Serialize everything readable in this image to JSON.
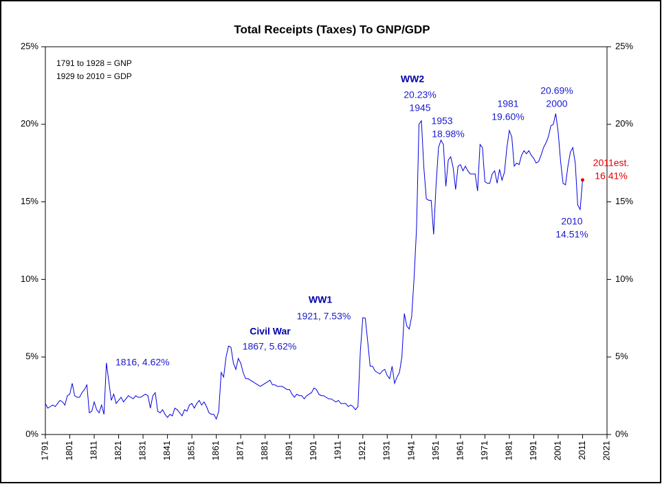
{
  "chart_data": {
    "type": "line",
    "title": "Total Receipts (Taxes) To GNP/GDP",
    "x": [
      1791,
      1792,
      1793,
      1794,
      1795,
      1796,
      1797,
      1798,
      1799,
      1800,
      1801,
      1802,
      1803,
      1804,
      1805,
      1806,
      1807,
      1808,
      1809,
      1810,
      1811,
      1812,
      1813,
      1814,
      1815,
      1816,
      1817,
      1818,
      1819,
      1820,
      1821,
      1822,
      1823,
      1824,
      1825,
      1826,
      1827,
      1828,
      1829,
      1830,
      1831,
      1832,
      1833,
      1834,
      1835,
      1836,
      1837,
      1838,
      1839,
      1840,
      1841,
      1842,
      1843,
      1844,
      1845,
      1846,
      1847,
      1848,
      1849,
      1850,
      1851,
      1852,
      1853,
      1854,
      1855,
      1856,
      1857,
      1858,
      1859,
      1860,
      1861,
      1862,
      1863,
      1864,
      1865,
      1866,
      1867,
      1868,
      1869,
      1870,
      1871,
      1872,
      1873,
      1874,
      1875,
      1876,
      1877,
      1878,
      1879,
      1880,
      1881,
      1882,
      1883,
      1884,
      1885,
      1886,
      1887,
      1888,
      1889,
      1890,
      1891,
      1892,
      1893,
      1894,
      1895,
      1896,
      1897,
      1898,
      1899,
      1900,
      1901,
      1902,
      1903,
      1904,
      1905,
      1906,
      1907,
      1908,
      1909,
      1910,
      1911,
      1912,
      1913,
      1914,
      1915,
      1916,
      1917,
      1918,
      1919,
      1920,
      1921,
      1922,
      1923,
      1924,
      1925,
      1926,
      1927,
      1928,
      1929,
      1930,
      1931,
      1932,
      1933,
      1934,
      1935,
      1936,
      1937,
      1938,
      1939,
      1940,
      1941,
      1942,
      1943,
      1944,
      1945,
      1946,
      1947,
      1948,
      1949,
      1950,
      1951,
      1952,
      1953,
      1954,
      1955,
      1956,
      1957,
      1958,
      1959,
      1960,
      1961,
      1962,
      1963,
      1964,
      1965,
      1966,
      1967,
      1968,
      1969,
      1970,
      1971,
      1972,
      1973,
      1974,
      1975,
      1976,
      1977,
      1978,
      1979,
      1980,
      1981,
      1982,
      1983,
      1984,
      1985,
      1986,
      1987,
      1988,
      1989,
      1990,
      1991,
      1992,
      1993,
      1994,
      1995,
      1996,
      1997,
      1998,
      1999,
      2000,
      2001,
      2002,
      2003,
      2004,
      2005,
      2006,
      2007,
      2008,
      2009,
      2010,
      2011
    ],
    "series": [
      {
        "color": "#0000dd",
        "estimate_color": "#e00000",
        "values": [
          2.0,
          1.7,
          1.8,
          1.9,
          1.8,
          2.0,
          2.2,
          2.1,
          1.9,
          2.5,
          2.6,
          3.3,
          2.5,
          2.4,
          2.4,
          2.7,
          2.9,
          3.2,
          1.4,
          1.5,
          2.1,
          1.6,
          1.4,
          1.9,
          1.3,
          4.62,
          3.4,
          2.2,
          2.6,
          2.0,
          2.2,
          2.4,
          2.1,
          2.3,
          2.5,
          2.4,
          2.3,
          2.5,
          2.4,
          2.4,
          2.5,
          2.6,
          2.5,
          1.7,
          2.5,
          2.7,
          1.5,
          1.4,
          1.6,
          1.3,
          1.1,
          1.3,
          1.2,
          1.7,
          1.6,
          1.4,
          1.2,
          1.6,
          1.5,
          1.9,
          2.0,
          1.7,
          2.0,
          2.2,
          1.9,
          2.1,
          1.8,
          1.4,
          1.3,
          1.3,
          1.0,
          1.5,
          4.0,
          3.7,
          5.0,
          5.7,
          5.62,
          4.6,
          4.2,
          4.9,
          4.6,
          4.0,
          3.6,
          3.6,
          3.5,
          3.4,
          3.3,
          3.2,
          3.1,
          3.2,
          3.3,
          3.4,
          3.5,
          3.2,
          3.2,
          3.1,
          3.1,
          3.1,
          3.0,
          2.9,
          2.9,
          2.6,
          2.4,
          2.6,
          2.5,
          2.5,
          2.3,
          2.5,
          2.6,
          2.7,
          3.0,
          2.9,
          2.6,
          2.5,
          2.5,
          2.4,
          2.3,
          2.3,
          2.2,
          2.1,
          2.2,
          2.0,
          2.0,
          2.0,
          1.8,
          1.9,
          1.8,
          1.6,
          1.8,
          5.4,
          7.53,
          7.5,
          6.0,
          4.4,
          4.4,
          4.1,
          4.0,
          3.9,
          4.1,
          4.2,
          3.8,
          3.6,
          4.4,
          3.3,
          3.7,
          4.0,
          5.0,
          7.8,
          7.0,
          6.8,
          7.6,
          10.1,
          13.3,
          20.0,
          20.23,
          17.2,
          15.2,
          15.1,
          15.1,
          12.9,
          16.1,
          18.5,
          18.98,
          18.7,
          16.0,
          17.7,
          17.9,
          17.2,
          15.8,
          17.3,
          17.4,
          17.0,
          17.3,
          17.0,
          16.8,
          16.8,
          16.8,
          15.7,
          18.7,
          18.5,
          16.3,
          16.2,
          16.2,
          16.8,
          17.0,
          16.2,
          17.1,
          16.4,
          16.9,
          18.5,
          19.6,
          19.2,
          17.3,
          17.5,
          17.4,
          18.0,
          18.3,
          18.1,
          18.3,
          18.0,
          17.8,
          17.5,
          17.6,
          18.0,
          18.5,
          18.8,
          19.2,
          19.9,
          20.0,
          20.69,
          19.5,
          17.6,
          16.2,
          16.1,
          17.3,
          18.2,
          18.5,
          17.5,
          14.8,
          14.51,
          16.41
        ]
      }
    ],
    "xlim": [
      1791,
      2021
    ],
    "xticks": [
      1791,
      1801,
      1811,
      1821,
      1831,
      1841,
      1851,
      1861,
      1871,
      1881,
      1891,
      1901,
      1911,
      1921,
      1931,
      1941,
      1951,
      1961,
      1971,
      1981,
      1991,
      2001,
      2011,
      2021
    ],
    "ylim": [
      0,
      25
    ],
    "yticks": [
      {
        "value": 0,
        "label": "0%"
      },
      {
        "value": 5,
        "label": "5%"
      },
      {
        "value": 10,
        "label": "10%"
      },
      {
        "value": 15,
        "label": "15%"
      },
      {
        "value": 20,
        "label": "20%"
      },
      {
        "value": 25,
        "label": "25%"
      }
    ],
    "annotations": [
      {
        "text": "1791 to 1928 = GNP",
        "color": "#000000"
      },
      {
        "text": "1929 to 2010 = GDP",
        "color": "#000000"
      },
      {
        "text": "1816, 4.62%",
        "color": "#1a1acc"
      },
      {
        "text": "Civil War",
        "color": "#0000aa",
        "bold": true
      },
      {
        "text": "1867, 5.62%",
        "color": "#1a1acc"
      },
      {
        "text": "WW1",
        "color": "#0000aa",
        "bold": true
      },
      {
        "text": "1921, 7.53%",
        "color": "#1a1acc"
      },
      {
        "text": "WW2",
        "color": "#0000aa",
        "bold": true
      },
      {
        "text": "20.23%",
        "color": "#1a1acc"
      },
      {
        "text": "1945",
        "color": "#1a1acc"
      },
      {
        "text": "1953",
        "color": "#1a1acc"
      },
      {
        "text": "18.98%",
        "color": "#1a1acc"
      },
      {
        "text": "1981",
        "color": "#1a1acc"
      },
      {
        "text": "19.60%",
        "color": "#1a1acc"
      },
      {
        "text": "20.69%",
        "color": "#1a1acc"
      },
      {
        "text": "2000",
        "color": "#1a1acc"
      },
      {
        "text": "2011est.",
        "color": "#e00000"
      },
      {
        "text": "16.41%",
        "color": "#e00000"
      },
      {
        "text": "2010",
        "color": "#1a1acc"
      },
      {
        "text": "14.51%",
        "color": "#1a1acc"
      }
    ]
  }
}
